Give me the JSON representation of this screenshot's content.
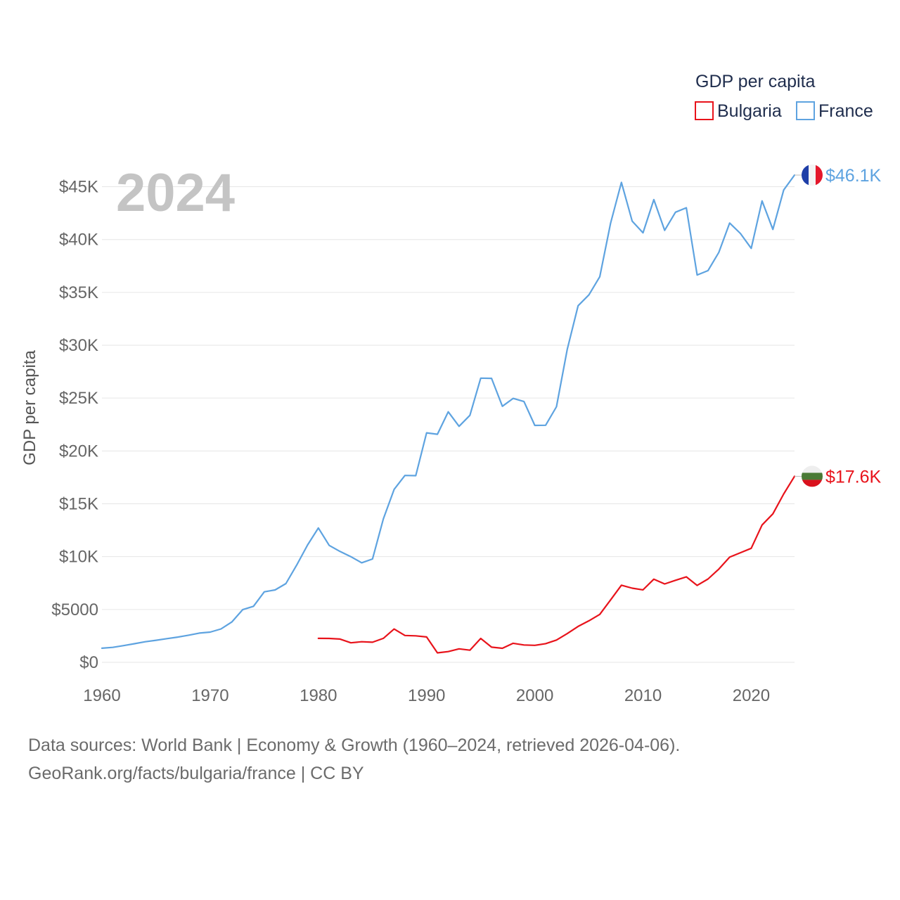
{
  "chart_data": {
    "type": "line",
    "year_label": "2024",
    "ylabel": "GDP per capita",
    "xlabel": "",
    "xlim": [
      1960,
      2024
    ],
    "ylim": [
      0,
      46100
    ],
    "x_ticks": [
      {
        "value": 1960,
        "label": "1960"
      },
      {
        "value": 1970,
        "label": "1970"
      },
      {
        "value": 1980,
        "label": "1980"
      },
      {
        "value": 1990,
        "label": "1990"
      },
      {
        "value": 2000,
        "label": "2000"
      },
      {
        "value": 2010,
        "label": "2010"
      },
      {
        "value": 2020,
        "label": "2020"
      }
    ],
    "y_ticks": [
      {
        "value": 0,
        "label": "$0"
      },
      {
        "value": 5000,
        "label": "$5000"
      },
      {
        "value": 10000,
        "label": "$10K"
      },
      {
        "value": 15000,
        "label": "$15K"
      },
      {
        "value": 20000,
        "label": "$20K"
      },
      {
        "value": 25000,
        "label": "$25K"
      },
      {
        "value": 30000,
        "label": "$30K"
      },
      {
        "value": 35000,
        "label": "$35K"
      },
      {
        "value": 40000,
        "label": "$40K"
      },
      {
        "value": 45000,
        "label": "$45K"
      }
    ],
    "legend": {
      "title": "GDP per capita",
      "position": "top-right"
    },
    "series": [
      {
        "name": "Bulgaria",
        "color": "#e8131b",
        "flag_icon": "bulgaria-flag-icon",
        "end_label": "$17.6K",
        "x": [
          1980,
          1981,
          1982,
          1983,
          1984,
          1985,
          1986,
          1987,
          1988,
          1989,
          1990,
          1991,
          1992,
          1993,
          1994,
          1995,
          1996,
          1997,
          1998,
          1999,
          2000,
          2001,
          2002,
          2003,
          2004,
          2005,
          2006,
          2007,
          2008,
          2009,
          2010,
          2011,
          2012,
          2013,
          2014,
          2015,
          2016,
          2017,
          2018,
          2019,
          2020,
          2021,
          2022,
          2023,
          2024
        ],
        "values": [
          2270,
          2260,
          2200,
          1850,
          1950,
          1900,
          2270,
          3150,
          2540,
          2510,
          2400,
          900,
          1020,
          1280,
          1150,
          2260,
          1440,
          1330,
          1800,
          1640,
          1610,
          1770,
          2110,
          2720,
          3400,
          3930,
          4540,
          5910,
          7300,
          7020,
          6860,
          7870,
          7420,
          7760,
          8090,
          7280,
          7880,
          8820,
          9950,
          10370,
          10790,
          12990,
          14050,
          15930,
          17600
        ]
      },
      {
        "name": "France",
        "color": "#5ea3e0",
        "flag_icon": "france-flag-icon",
        "end_label": "$46.1K",
        "x": [
          1960,
          1961,
          1962,
          1963,
          1964,
          1965,
          1966,
          1967,
          1968,
          1969,
          1970,
          1971,
          1972,
          1973,
          1974,
          1975,
          1976,
          1977,
          1978,
          1979,
          1980,
          1981,
          1982,
          1983,
          1984,
          1985,
          1986,
          1987,
          1988,
          1989,
          1990,
          1991,
          1992,
          1993,
          1994,
          1995,
          1996,
          1997,
          1998,
          1999,
          2000,
          2001,
          2002,
          2003,
          2004,
          2005,
          2006,
          2007,
          2008,
          2009,
          2010,
          2011,
          2012,
          2013,
          2014,
          2015,
          2016,
          2017,
          2018,
          2019,
          2020,
          2021,
          2022,
          2023,
          2024
        ],
        "values": [
          1340,
          1420,
          1580,
          1760,
          1950,
          2090,
          2240,
          2390,
          2570,
          2770,
          2860,
          3160,
          3820,
          4980,
          5300,
          6670,
          6850,
          7450,
          9210,
          11100,
          12710,
          11060,
          10490,
          10000,
          9420,
          9780,
          13570,
          16360,
          17680,
          17660,
          21710,
          21580,
          23700,
          22330,
          23370,
          26890,
          26870,
          24230,
          24970,
          24670,
          22420,
          22430,
          24180,
          29630,
          33740,
          34770,
          36480,
          41550,
          45410,
          41740,
          40640,
          43780,
          40870,
          42590,
          43010,
          36650,
          37060,
          38780,
          41560,
          40580,
          39170,
          43660,
          40960,
          44690,
          46100
        ]
      }
    ],
    "footer": {
      "line1": "Data sources: World Bank | Economy & Growth (1960–2024, retrieved 2026-04-06).",
      "line2": "GeoRank.org/facts/bulgaria/france | CC BY"
    }
  }
}
